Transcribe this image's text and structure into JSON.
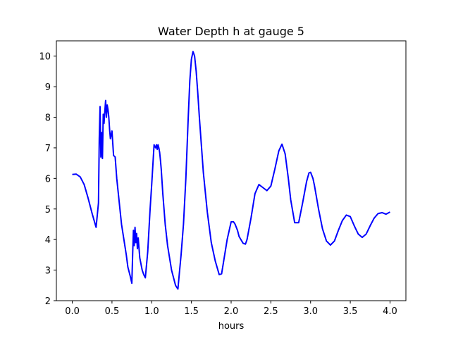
{
  "chart_data": {
    "type": "line",
    "title": "Water Depth h at gauge 5",
    "xlabel": "hours",
    "ylabel": "",
    "xlim": [
      -0.2,
      4.2
    ],
    "ylim": [
      2,
      10.5
    ],
    "xticks": [
      0.0,
      0.5,
      1.0,
      1.5,
      2.0,
      2.5,
      3.0,
      3.5,
      4.0
    ],
    "xtick_labels": [
      "0.0",
      "0.5",
      "1.0",
      "1.5",
      "2.0",
      "2.5",
      "3.0",
      "3.5",
      "4.0"
    ],
    "yticks": [
      2,
      3,
      4,
      5,
      6,
      7,
      8,
      9,
      10
    ],
    "ytick_labels": [
      "2",
      "3",
      "4",
      "5",
      "6",
      "7",
      "8",
      "9",
      "10"
    ],
    "grid": false,
    "line_color": "#0000ff",
    "series": [
      {
        "x": [
          0.0,
          0.05,
          0.1,
          0.15,
          0.2,
          0.25,
          0.3,
          0.33,
          0.34,
          0.35,
          0.36,
          0.37,
          0.38,
          0.39,
          0.4,
          0.41,
          0.42,
          0.43,
          0.44,
          0.45,
          0.46,
          0.47,
          0.48,
          0.5,
          0.52,
          0.54,
          0.56,
          0.58,
          0.6,
          0.62,
          0.65,
          0.68,
          0.7,
          0.73,
          0.75,
          0.76,
          0.77,
          0.78,
          0.79,
          0.8,
          0.81,
          0.82,
          0.83,
          0.85,
          0.88,
          0.9,
          0.92,
          0.95,
          0.98,
          1.0,
          1.03,
          1.05,
          1.06,
          1.07,
          1.08,
          1.09,
          1.1,
          1.11,
          1.12,
          1.14,
          1.17,
          1.2,
          1.25,
          1.3,
          1.33,
          1.35,
          1.37,
          1.4,
          1.43,
          1.46,
          1.48,
          1.5,
          1.52,
          1.54,
          1.56,
          1.58,
          1.6,
          1.65,
          1.7,
          1.75,
          1.8,
          1.85,
          1.88,
          1.9,
          1.95,
          2.0,
          2.03,
          2.05,
          2.08,
          2.1,
          2.15,
          2.18,
          2.2,
          2.25,
          2.3,
          2.35,
          2.4,
          2.45,
          2.5,
          2.55,
          2.6,
          2.64,
          2.68,
          2.72,
          2.75,
          2.8,
          2.85,
          2.9,
          2.95,
          2.98,
          3.0,
          3.03,
          3.05,
          3.1,
          3.15,
          3.2,
          3.25,
          3.3,
          3.35,
          3.4,
          3.45,
          3.5,
          3.55,
          3.6,
          3.65,
          3.7,
          3.75,
          3.8,
          3.85,
          3.9,
          3.95,
          4.0
        ],
        "values": [
          6.13,
          6.14,
          6.05,
          5.8,
          5.35,
          4.85,
          4.4,
          5.2,
          7.3,
          8.35,
          6.7,
          7.5,
          6.65,
          8.1,
          7.8,
          8.2,
          8.55,
          8.0,
          8.4,
          8.25,
          8.0,
          7.6,
          7.3,
          7.55,
          6.75,
          6.7,
          6.0,
          5.5,
          5.0,
          4.5,
          4.0,
          3.5,
          3.1,
          2.8,
          2.57,
          3.5,
          4.3,
          3.8,
          4.4,
          3.9,
          4.2,
          3.7,
          4.05,
          3.4,
          3.0,
          2.85,
          2.75,
          3.6,
          5.0,
          5.8,
          7.1,
          7.0,
          7.1,
          6.95,
          7.1,
          7.0,
          6.85,
          6.6,
          6.3,
          5.5,
          4.5,
          3.8,
          3.0,
          2.5,
          2.38,
          2.95,
          3.5,
          4.5,
          6.0,
          8.0,
          9.2,
          9.9,
          10.15,
          10.0,
          9.5,
          8.8,
          8.0,
          6.2,
          4.9,
          3.9,
          3.3,
          2.85,
          2.88,
          3.2,
          4.0,
          4.58,
          4.58,
          4.5,
          4.3,
          4.1,
          3.88,
          3.85,
          4.0,
          4.7,
          5.5,
          5.8,
          5.7,
          5.6,
          5.75,
          6.3,
          6.9,
          7.12,
          6.8,
          6.0,
          5.3,
          4.55,
          4.55,
          5.2,
          5.9,
          6.18,
          6.2,
          6.0,
          5.75,
          5.0,
          4.35,
          3.95,
          3.82,
          3.95,
          4.3,
          4.62,
          4.8,
          4.75,
          4.45,
          4.18,
          4.07,
          4.18,
          4.45,
          4.7,
          4.85,
          4.88,
          4.83,
          4.9
        ]
      }
    ]
  }
}
